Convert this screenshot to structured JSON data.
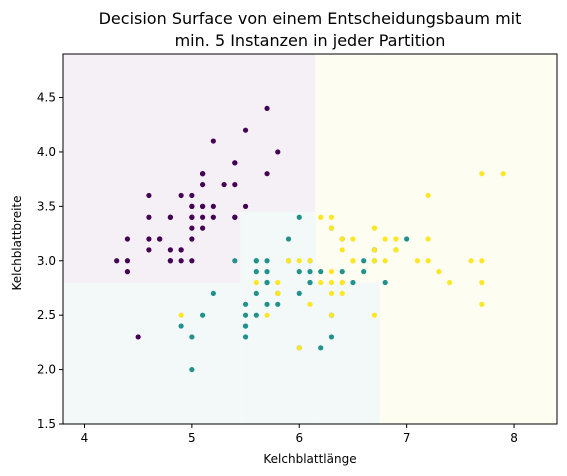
{
  "chart_data": {
    "type": "scatter",
    "title_lines": [
      "Decision Surface von einem Entscheidungsbaum mit",
      "min. 5 Instanzen in jeder Partition"
    ],
    "xlabel": "Kelchblattlänge",
    "ylabel": "Kelchblattbreite",
    "xlim": [
      3.8,
      8.4
    ],
    "ylim": [
      1.5,
      4.9
    ],
    "xticks": [
      4,
      5,
      6,
      7,
      8
    ],
    "yticks": [
      1.5,
      2.0,
      2.5,
      3.0,
      3.5,
      4.0,
      4.5
    ],
    "grid": false,
    "colors": {
      "class0": "#440154",
      "class1": "#21918c",
      "class2": "#fde725"
    },
    "regions": [
      {
        "class": "class0",
        "x": [
          3.8,
          6.15
        ],
        "y": [
          2.8,
          4.9
        ],
        "color": "#f5f0f6"
      },
      {
        "class": "class1",
        "x": [
          3.8,
          5.45
        ],
        "y": [
          1.5,
          2.8
        ],
        "color": "#f3f8f9"
      },
      {
        "class": "class1",
        "x": [
          5.45,
          6.15
        ],
        "y": [
          1.5,
          3.45
        ],
        "color": "#f3f8f9"
      },
      {
        "class": "class1",
        "x": [
          6.15,
          6.75
        ],
        "y": [
          1.5,
          2.8
        ],
        "color": "#f3f8f9"
      },
      {
        "class": "class2",
        "x": [
          6.75,
          8.4
        ],
        "y": [
          1.5,
          4.9
        ],
        "color": "#fefdf2"
      },
      {
        "class": "class2",
        "x": [
          6.15,
          6.75
        ],
        "y": [
          2.8,
          4.9
        ],
        "color": "#fefdf2"
      }
    ],
    "series": [
      {
        "class": "class0",
        "points": [
          [
            5.1,
            3.5
          ],
          [
            4.9,
            3.0
          ],
          [
            4.7,
            3.2
          ],
          [
            4.6,
            3.1
          ],
          [
            5.0,
            3.6
          ],
          [
            5.4,
            3.9
          ],
          [
            4.6,
            3.4
          ],
          [
            5.0,
            3.4
          ],
          [
            4.4,
            2.9
          ],
          [
            4.9,
            3.1
          ],
          [
            5.4,
            3.7
          ],
          [
            4.8,
            3.4
          ],
          [
            4.8,
            3.0
          ],
          [
            4.3,
            3.0
          ],
          [
            5.8,
            4.0
          ],
          [
            5.7,
            4.4
          ],
          [
            5.4,
            3.9
          ],
          [
            5.1,
            3.5
          ],
          [
            5.7,
            3.8
          ],
          [
            5.1,
            3.8
          ],
          [
            5.4,
            3.4
          ],
          [
            5.1,
            3.7
          ],
          [
            4.6,
            3.6
          ],
          [
            5.1,
            3.3
          ],
          [
            4.8,
            3.4
          ],
          [
            5.0,
            3.0
          ],
          [
            5.0,
            3.4
          ],
          [
            5.2,
            3.5
          ],
          [
            5.2,
            3.4
          ],
          [
            4.7,
            3.2
          ],
          [
            4.8,
            3.1
          ],
          [
            5.4,
            3.4
          ],
          [
            5.2,
            4.1
          ],
          [
            5.5,
            4.2
          ],
          [
            4.9,
            3.1
          ],
          [
            5.0,
            3.2
          ],
          [
            5.5,
            3.5
          ],
          [
            4.9,
            3.6
          ],
          [
            4.4,
            3.0
          ],
          [
            5.1,
            3.4
          ],
          [
            5.0,
            3.5
          ],
          [
            4.5,
            2.3
          ],
          [
            4.4,
            3.2
          ],
          [
            5.0,
            3.5
          ],
          [
            5.1,
            3.8
          ],
          [
            4.8,
            3.0
          ],
          [
            5.1,
            3.8
          ],
          [
            4.6,
            3.2
          ],
          [
            5.3,
            3.7
          ],
          [
            5.0,
            3.3
          ]
        ]
      },
      {
        "class": "class1",
        "points": [
          [
            7.0,
            3.2
          ],
          [
            6.4,
            3.2
          ],
          [
            6.9,
            3.1
          ],
          [
            5.5,
            2.3
          ],
          [
            6.5,
            2.8
          ],
          [
            5.7,
            2.8
          ],
          [
            6.3,
            3.3
          ],
          [
            4.9,
            2.4
          ],
          [
            6.6,
            2.9
          ],
          [
            5.2,
            2.7
          ],
          [
            5.0,
            2.0
          ],
          [
            5.9,
            3.0
          ],
          [
            6.0,
            2.2
          ],
          [
            6.1,
            2.9
          ],
          [
            5.6,
            2.9
          ],
          [
            6.7,
            3.1
          ],
          [
            5.6,
            3.0
          ],
          [
            5.8,
            2.7
          ],
          [
            6.2,
            2.2
          ],
          [
            5.6,
            2.5
          ],
          [
            5.9,
            3.2
          ],
          [
            6.1,
            2.8
          ],
          [
            6.3,
            2.5
          ],
          [
            6.1,
            2.8
          ],
          [
            6.4,
            2.9
          ],
          [
            6.6,
            3.0
          ],
          [
            6.8,
            2.8
          ],
          [
            6.7,
            3.0
          ],
          [
            6.0,
            2.9
          ],
          [
            5.7,
            2.6
          ],
          [
            5.5,
            2.4
          ],
          [
            5.5,
            2.4
          ],
          [
            5.8,
            2.7
          ],
          [
            6.0,
            2.7
          ],
          [
            5.4,
            3.0
          ],
          [
            6.0,
            3.4
          ],
          [
            6.7,
            3.1
          ],
          [
            6.3,
            2.3
          ],
          [
            5.6,
            3.0
          ],
          [
            5.5,
            2.5
          ],
          [
            5.5,
            2.6
          ],
          [
            6.1,
            3.0
          ],
          [
            5.8,
            2.6
          ],
          [
            5.0,
            2.3
          ],
          [
            5.6,
            2.7
          ],
          [
            5.7,
            3.0
          ],
          [
            5.7,
            2.9
          ],
          [
            6.2,
            2.9
          ],
          [
            5.1,
            2.5
          ],
          [
            5.7,
            2.8
          ]
        ]
      },
      {
        "class": "class2",
        "points": [
          [
            6.3,
            3.3
          ],
          [
            5.8,
            2.7
          ],
          [
            7.1,
            3.0
          ],
          [
            6.3,
            2.9
          ],
          [
            6.5,
            3.0
          ],
          [
            7.6,
            3.0
          ],
          [
            4.9,
            2.5
          ],
          [
            7.3,
            2.9
          ],
          [
            6.7,
            2.5
          ],
          [
            7.2,
            3.6
          ],
          [
            6.5,
            3.2
          ],
          [
            6.4,
            2.7
          ],
          [
            6.8,
            3.0
          ],
          [
            5.7,
            2.5
          ],
          [
            5.8,
            2.8
          ],
          [
            6.4,
            3.2
          ],
          [
            6.5,
            3.0
          ],
          [
            7.7,
            3.8
          ],
          [
            7.7,
            2.6
          ],
          [
            6.0,
            2.2
          ],
          [
            6.9,
            3.2
          ],
          [
            5.6,
            2.8
          ],
          [
            7.7,
            2.8
          ],
          [
            6.3,
            2.7
          ],
          [
            6.7,
            3.3
          ],
          [
            7.2,
            3.2
          ],
          [
            6.2,
            2.8
          ],
          [
            6.1,
            3.0
          ],
          [
            6.4,
            2.8
          ],
          [
            7.2,
            3.0
          ],
          [
            7.4,
            2.8
          ],
          [
            7.9,
            3.8
          ],
          [
            6.4,
            2.8
          ],
          [
            6.3,
            2.8
          ],
          [
            6.1,
            2.6
          ],
          [
            7.7,
            3.0
          ],
          [
            6.3,
            3.4
          ],
          [
            6.4,
            3.1
          ],
          [
            6.0,
            3.0
          ],
          [
            6.9,
            3.1
          ],
          [
            6.7,
            3.1
          ],
          [
            6.9,
            3.1
          ],
          [
            5.8,
            2.7
          ],
          [
            6.8,
            3.2
          ],
          [
            6.7,
            3.3
          ],
          [
            6.7,
            3.0
          ],
          [
            6.3,
            2.5
          ],
          [
            6.5,
            3.0
          ],
          [
            6.2,
            3.4
          ],
          [
            5.9,
            3.0
          ]
        ]
      }
    ]
  }
}
